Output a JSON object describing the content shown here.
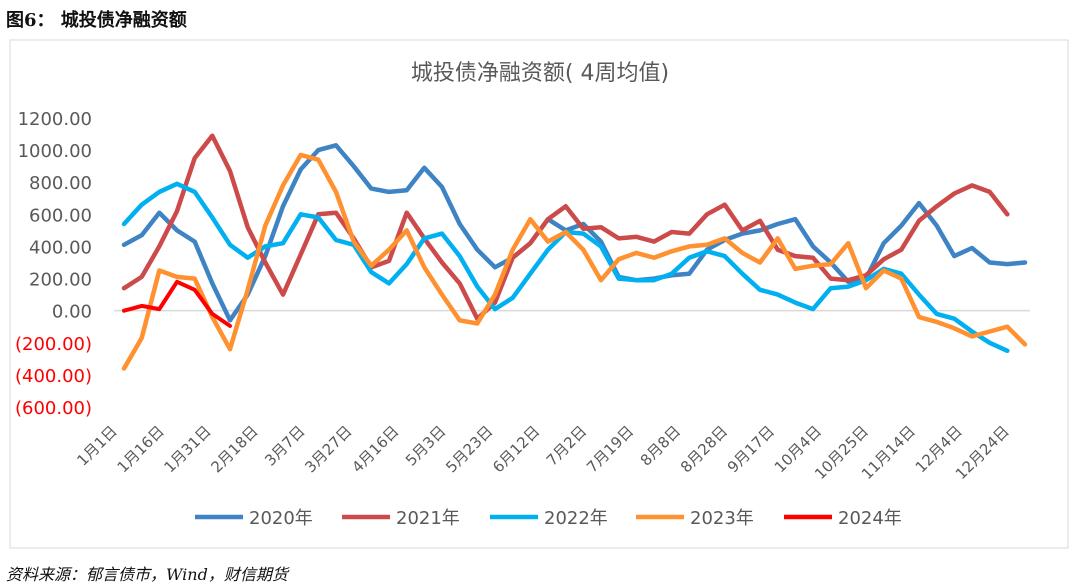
{
  "header": "图6： 城投债净融资额",
  "source": "资料来源：郁言债市，Wind，财信期货",
  "chart_data": {
    "type": "line",
    "title": "城投债净融资额( 4周均值)",
    "xlabel": "",
    "ylabel": "",
    "ylim": [
      -600,
      1200
    ],
    "yticks": [
      1200,
      1000,
      800,
      600,
      400,
      200,
      0,
      -200,
      -400,
      -600
    ],
    "ytick_labels": [
      "1200.00",
      "1000.00",
      "800.00",
      "600.00",
      "400.00",
      "200.00",
      "0.00",
      "(200.00)",
      "(400.00)",
      "(600.00)"
    ],
    "negative_tick_color": "#ff0000",
    "x_tick_labels": [
      "1月1日",
      "1月16日",
      "1月31日",
      "2月18日",
      "3月7日",
      "3月27日",
      "4月16日",
      "5月3日",
      "5月23日",
      "6月12日",
      "7月2日",
      "7月19日",
      "8月8日",
      "8月28日",
      "9月17日",
      "10月4日",
      "10月25日",
      "11月14日",
      "12月4日",
      "12月24日"
    ],
    "n_points": 52,
    "legend_position": "bottom",
    "grid": false,
    "series": [
      {
        "name": "2020年",
        "color": "#3e83c4",
        "values": [
          410,
          470,
          610,
          500,
          430,
          170,
          -60,
          100,
          340,
          650,
          880,
          1000,
          1030,
          900,
          760,
          740,
          750,
          890,
          770,
          540,
          380,
          270,
          330,
          420,
          570,
          500,
          540,
          430,
          210,
          190,
          200,
          220,
          230,
          380,
          440,
          480,
          500,
          540,
          570,
          400,
          300,
          180,
          200,
          420,
          530,
          670,
          530,
          340,
          390,
          300,
          290,
          300
        ]
      },
      {
        "name": "2021年",
        "color": "#cc4a4a",
        "values": [
          140,
          210,
          400,
          620,
          950,
          1090,
          870,
          520,
          300,
          100,
          350,
          600,
          610,
          450,
          270,
          310,
          610,
          450,
          300,
          170,
          -50,
          50,
          330,
          420,
          570,
          650,
          510,
          520,
          450,
          460,
          430,
          490,
          480,
          600,
          660,
          500,
          560,
          380,
          340,
          330,
          200,
          190,
          220,
          320,
          380,
          560,
          650,
          730,
          780,
          740,
          600
        ]
      },
      {
        "name": "2022年",
        "color": "#00b0f0",
        "values": [
          540,
          660,
          740,
          790,
          740,
          580,
          410,
          330,
          400,
          420,
          600,
          580,
          440,
          410,
          240,
          170,
          290,
          450,
          480,
          340,
          150,
          10,
          80,
          230,
          380,
          490,
          480,
          400,
          200,
          190,
          190,
          230,
          330,
          370,
          340,
          230,
          130,
          100,
          50,
          10,
          140,
          150,
          190,
          260,
          230,
          100,
          -20,
          -50,
          -130,
          -200,
          -250
        ]
      },
      {
        "name": "2023年",
        "color": "#ff9130",
        "values": [
          -360,
          -170,
          250,
          210,
          200,
          -40,
          -240,
          130,
          530,
          780,
          970,
          940,
          740,
          430,
          280,
          380,
          500,
          270,
          100,
          -60,
          -80,
          100,
          380,
          570,
          430,
          490,
          380,
          190,
          320,
          360,
          330,
          370,
          400,
          410,
          450,
          360,
          300,
          450,
          260,
          280,
          290,
          420,
          140,
          250,
          200,
          -40,
          -70,
          -110,
          -160,
          -130,
          -100,
          -210
        ]
      },
      {
        "name": "2024年",
        "color": "#ff0000",
        "values": [
          0,
          30,
          10,
          180,
          130,
          -20,
          -95
        ]
      }
    ]
  }
}
